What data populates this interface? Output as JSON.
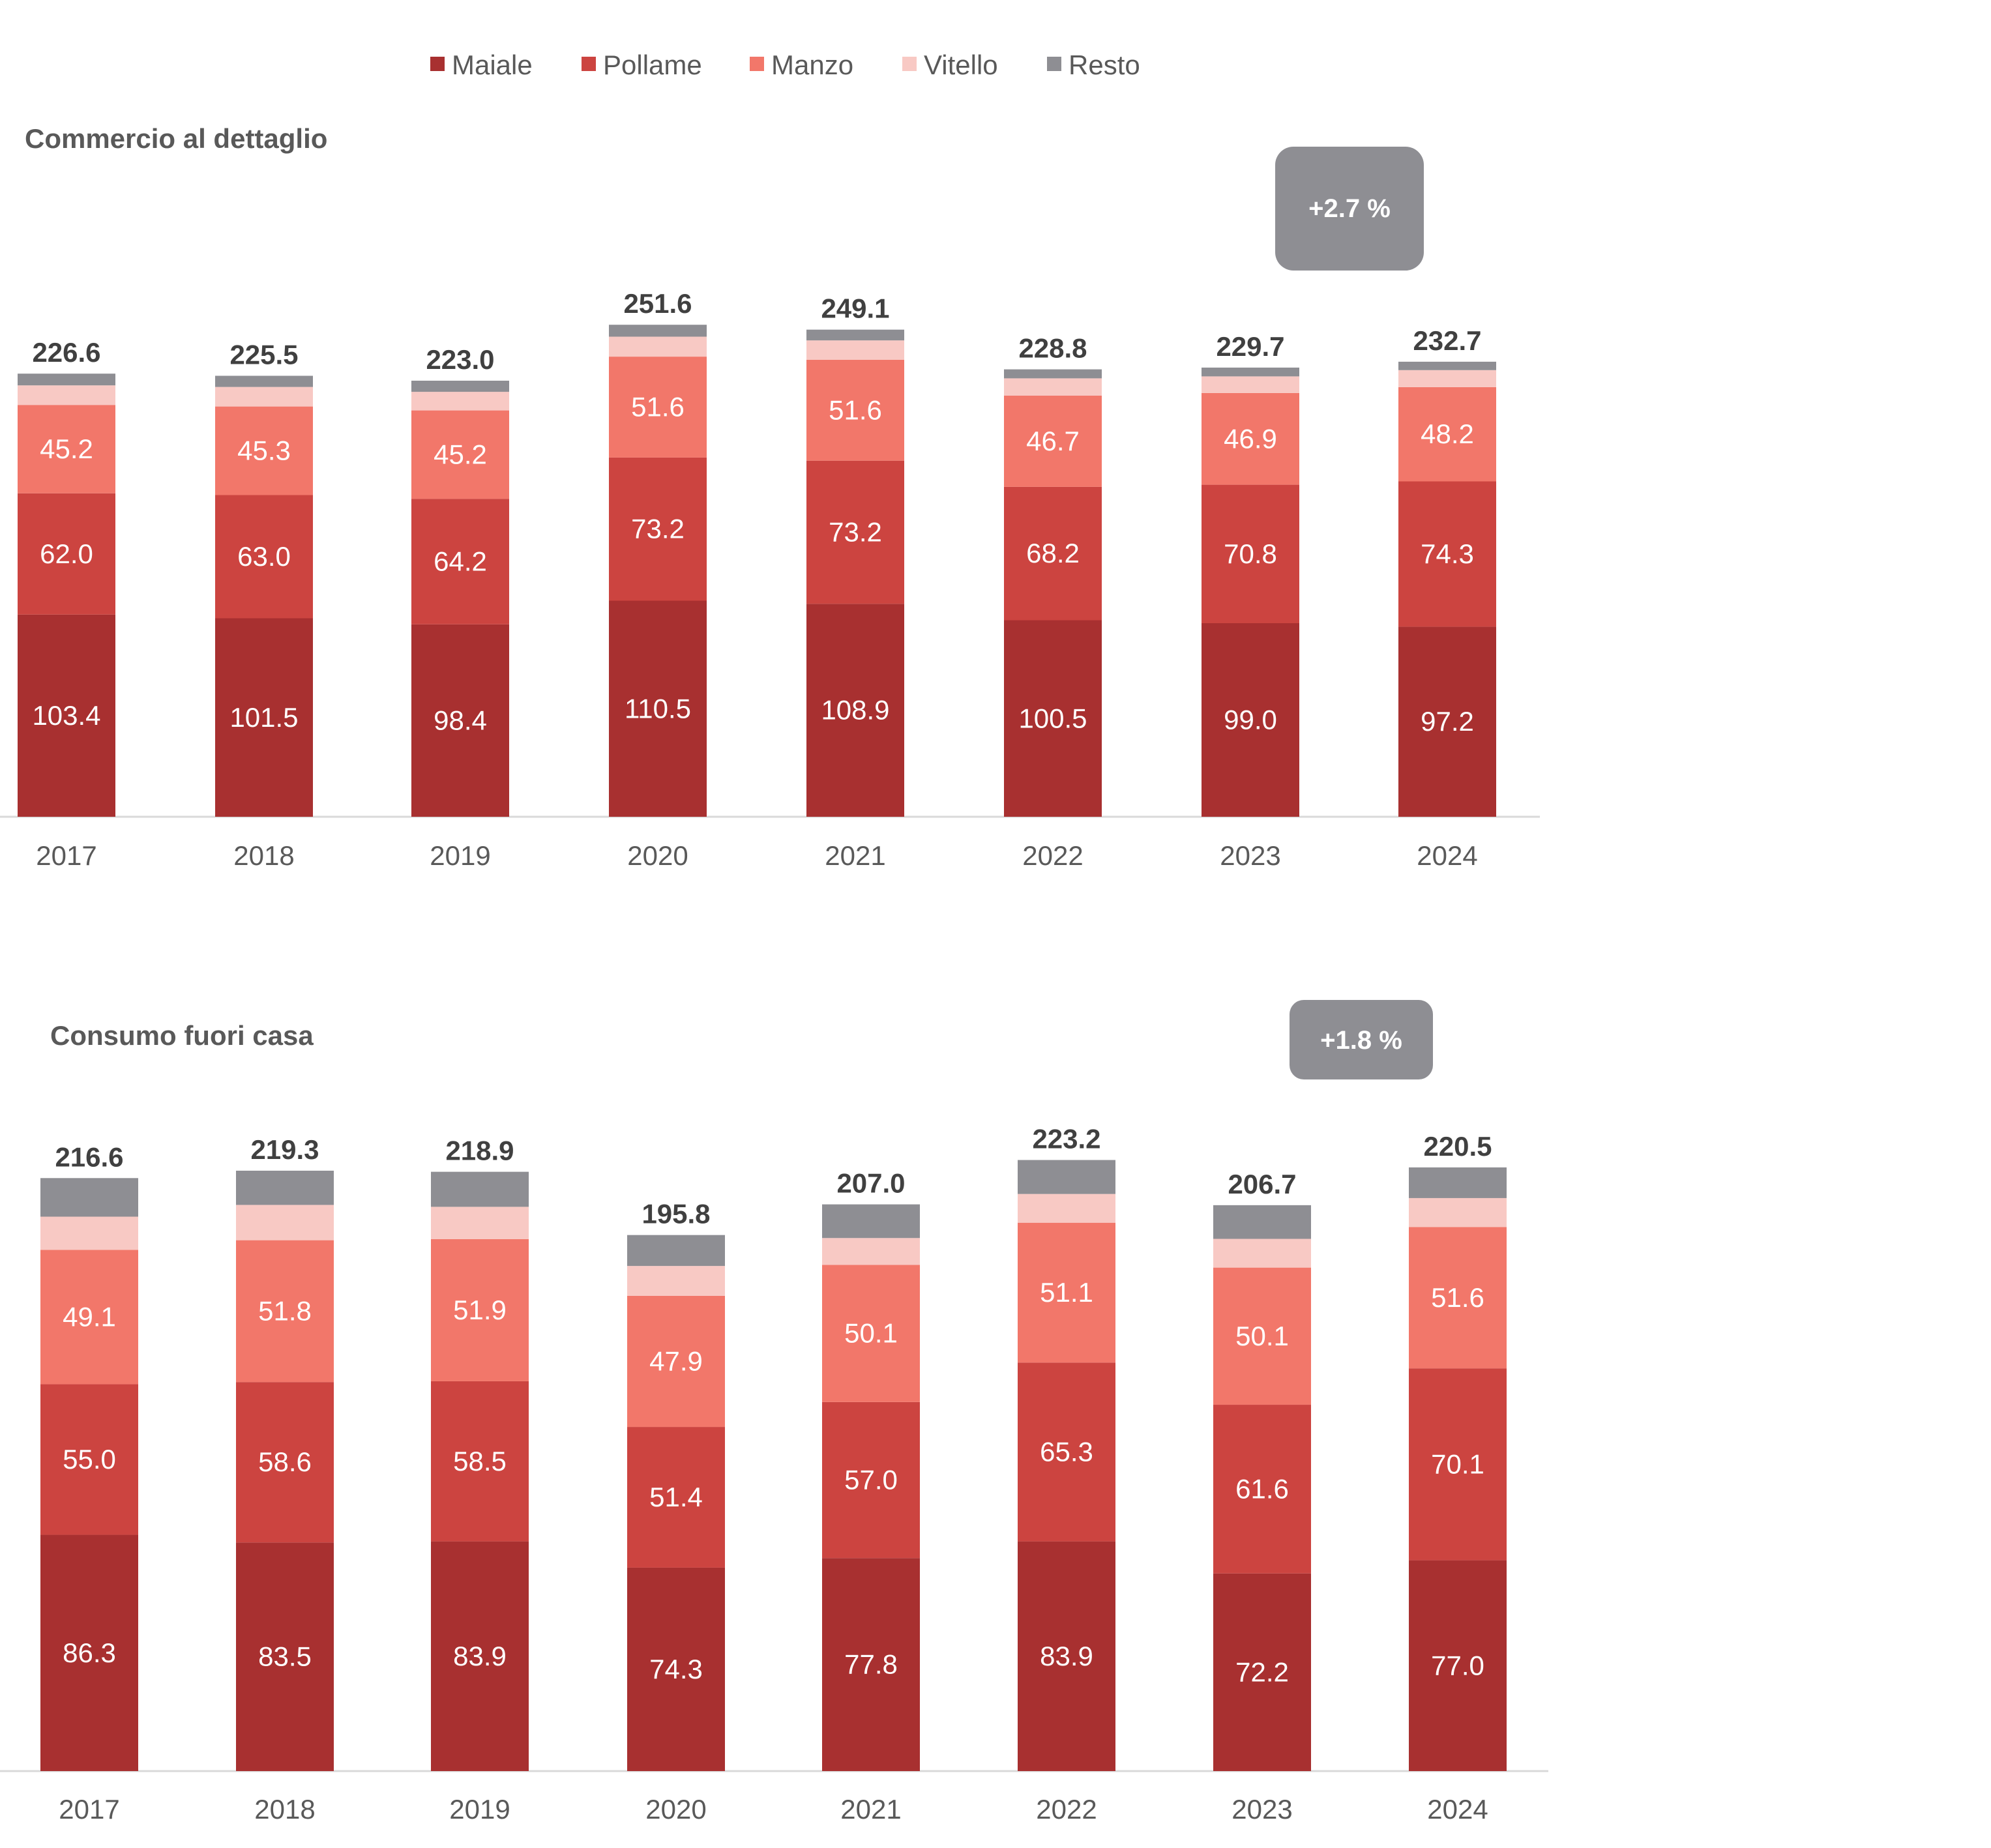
{
  "colors": {
    "Maiale": "#a83030",
    "Pollame": "#cc4440",
    "Manzo": "#f2776a",
    "Vitello": "#f8c9c4",
    "Resto": "#8e8e93",
    "axis": "#d9d9d9",
    "badge": "#8e8e93"
  },
  "legend": [
    "Maiale",
    "Pollame",
    "Manzo",
    "Vitello",
    "Resto"
  ],
  "chart_data": [
    {
      "type": "bar",
      "stacked": true,
      "title": "Commercio al dettaglio",
      "badge": "+2.7 %",
      "categories": [
        "2017",
        "2018",
        "2019",
        "2020",
        "2021",
        "2022",
        "2023",
        "2024"
      ],
      "totals": [
        "226.6",
        "225.5",
        "223.0",
        "251.6",
        "249.1",
        "228.8",
        "229.7",
        "232.7"
      ],
      "series": [
        {
          "name": "Maiale",
          "values": [
            103.4,
            101.5,
            98.4,
            110.5,
            108.9,
            100.5,
            99.0,
            97.2
          ],
          "labels": [
            "103.4",
            "101.5",
            "98.4",
            "110.5",
            "108.9",
            "100.5",
            "99.0",
            "97.2"
          ]
        },
        {
          "name": "Pollame",
          "values": [
            62.0,
            63.0,
            64.2,
            73.2,
            73.2,
            68.2,
            70.8,
            74.3
          ],
          "labels": [
            "62.0",
            "63.0",
            "64.2",
            "73.2",
            "73.2",
            "68.2",
            "70.8",
            "74.3"
          ]
        },
        {
          "name": "Manzo",
          "values": [
            45.2,
            45.3,
            45.2,
            51.6,
            51.6,
            46.7,
            46.9,
            48.2
          ],
          "labels": [
            "45.2",
            "45.3",
            "45.2",
            "51.6",
            "51.6",
            "46.7",
            "46.9",
            "48.2"
          ]
        },
        {
          "name": "Vitello",
          "values": [
            10.0,
            10.0,
            9.5,
            10.2,
            9.9,
            8.8,
            8.5,
            8.7
          ]
        },
        {
          "name": "Resto",
          "values": [
            6.0,
            5.7,
            5.7,
            6.1,
            5.5,
            4.6,
            4.5,
            4.3
          ]
        }
      ]
    },
    {
      "type": "bar",
      "stacked": true,
      "title": "Consumo fuori casa",
      "badge": "+1.8 %",
      "categories": [
        "2017",
        "2018",
        "2019",
        "2020",
        "2021",
        "2022",
        "2023",
        "2024"
      ],
      "totals": [
        "216.6",
        "219.3",
        "218.9",
        "195.8",
        "207.0",
        "223.2",
        "206.7",
        "220.5"
      ],
      "series": [
        {
          "name": "Maiale",
          "values": [
            86.3,
            83.5,
            83.9,
            74.3,
            77.8,
            83.9,
            72.2,
            77.0
          ],
          "labels": [
            "86.3",
            "83.5",
            "83.9",
            "74.3",
            "77.8",
            "83.9",
            "72.2",
            "77.0"
          ]
        },
        {
          "name": "Pollame",
          "values": [
            55.0,
            58.6,
            58.5,
            51.4,
            57.0,
            65.3,
            61.6,
            70.1
          ],
          "labels": [
            "55.0",
            "58.6",
            "58.5",
            "51.4",
            "57.0",
            "65.3",
            "61.6",
            "70.1"
          ]
        },
        {
          "name": "Manzo",
          "values": [
            49.1,
            51.8,
            51.9,
            47.9,
            50.1,
            51.1,
            50.1,
            51.6
          ],
          "labels": [
            "49.1",
            "51.8",
            "51.9",
            "47.9",
            "50.1",
            "51.1",
            "50.1",
            "51.6"
          ]
        },
        {
          "name": "Vitello",
          "values": [
            12.1,
            12.9,
            11.8,
            10.9,
            9.8,
            10.5,
            10.5,
            10.6
          ]
        },
        {
          "name": "Resto",
          "values": [
            14.1,
            12.5,
            12.8,
            11.3,
            12.3,
            12.4,
            12.3,
            11.2
          ]
        }
      ]
    }
  ]
}
